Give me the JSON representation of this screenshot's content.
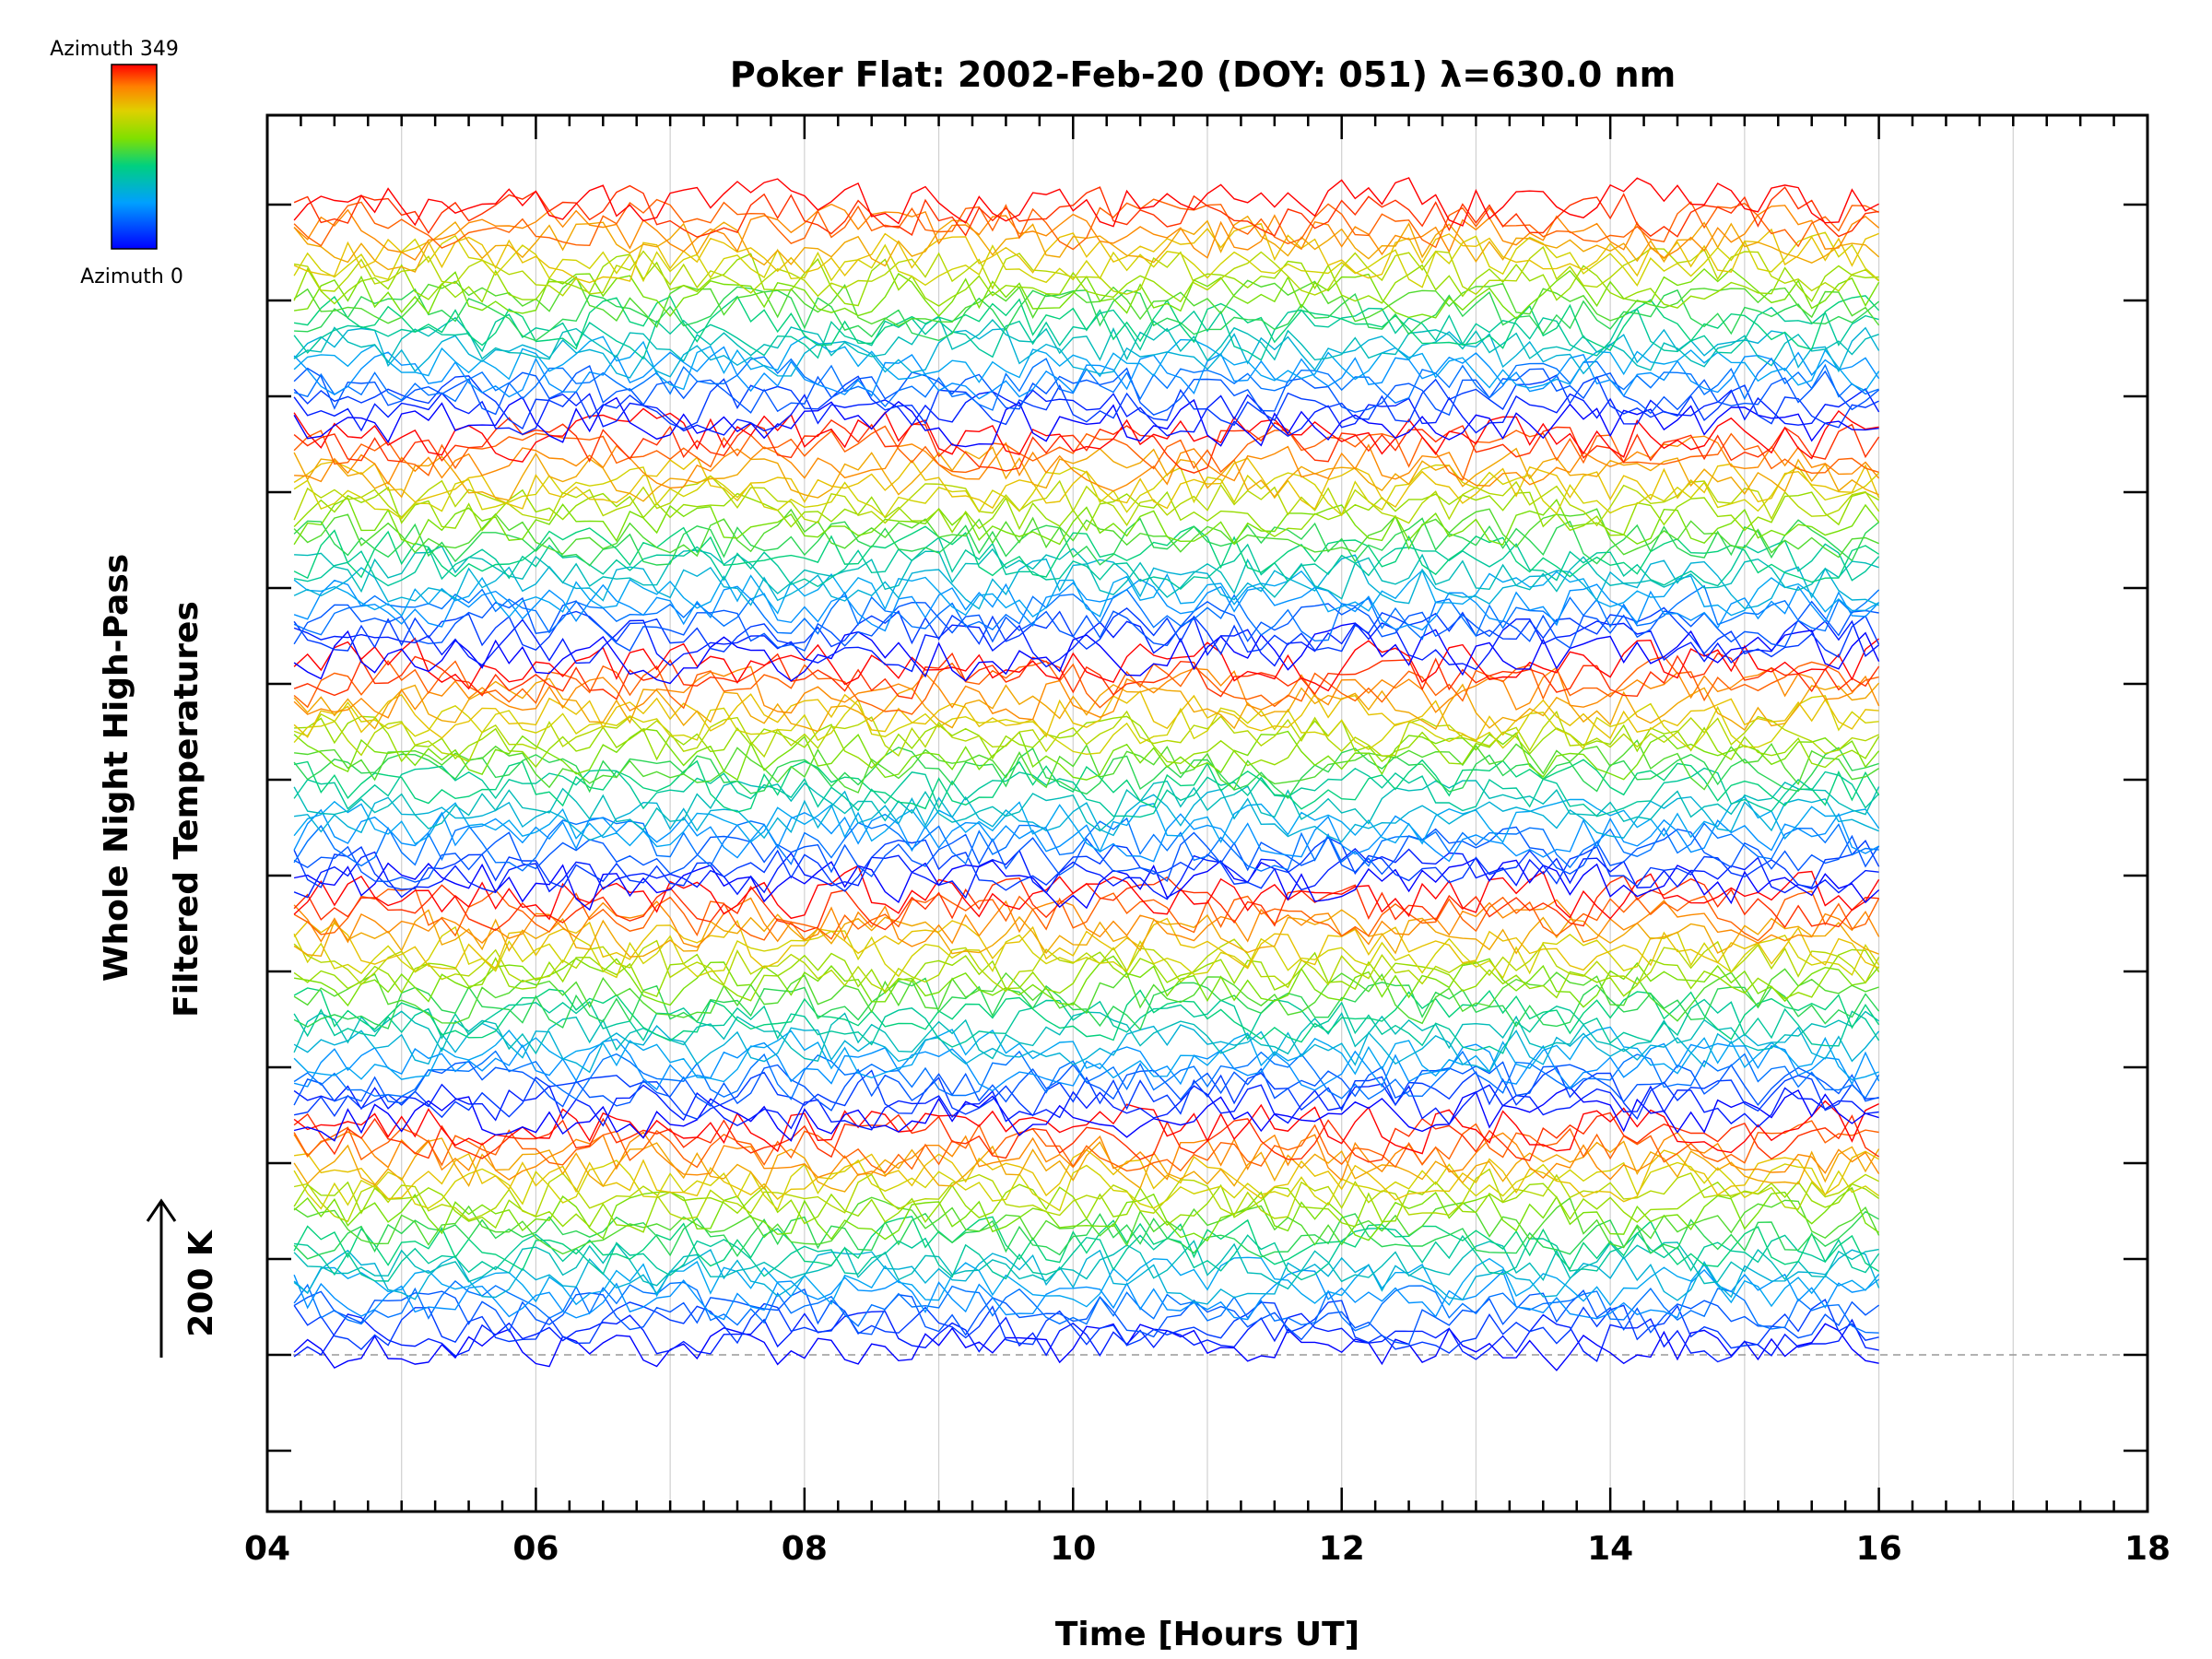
{
  "chart_data": {
    "type": "line",
    "title": "Poker Flat: 2002-Feb-20 (DOY: 051) λ=630.0 nm",
    "xlabel": "Time [Hours UT]",
    "ylabel_line1": "Whole Night High-Pass",
    "ylabel_line2": "Filtered Temperatures",
    "xlim": [
      4,
      18
    ],
    "x_ticks": [
      "04",
      "06",
      "08",
      "10",
      "12",
      "14",
      "16",
      "18"
    ],
    "x_range_data": [
      4.2,
      16.05
    ],
    "scale_bar_label": "200 K",
    "scale_bar_K": 200,
    "colorbar": {
      "top_label": "Azimuth 349",
      "bottom_label": "Azimuth 0",
      "min": 0,
      "max": 349
    },
    "grid": "vertical",
    "baseline": "dashed",
    "series_count": 115,
    "offset_K": 48,
    "note_series": "115 azimuth-look traces; each stacked with a constant vertical offset, colored by azimuth (blue=0 to red=349)"
  }
}
